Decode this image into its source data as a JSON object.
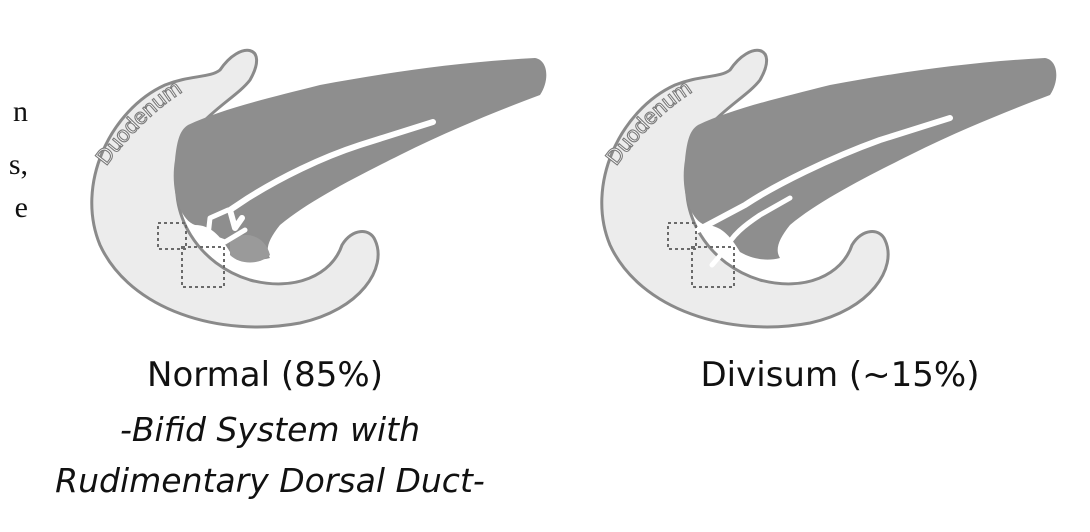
{
  "clipped_text": [
    "n",
    "s,",
    "e"
  ],
  "panels": [
    {
      "organ_label": "Duodenum",
      "caption": "Normal (85%)",
      "subcaption_line1": "-Bifid System with",
      "subcaption_line2": "Rudimentary Dorsal Duct-"
    },
    {
      "organ_label": "Duodenum",
      "caption": "Divisum (~15%)"
    }
  ],
  "colors": {
    "duodenum_fill": "#ececec",
    "duodenum_stroke": "#8a8a8a",
    "pancreas_fill": "#8e8e8e",
    "duct": "#ffffff",
    "papilla_box": "#6a6a6a",
    "text": "#111111"
  }
}
